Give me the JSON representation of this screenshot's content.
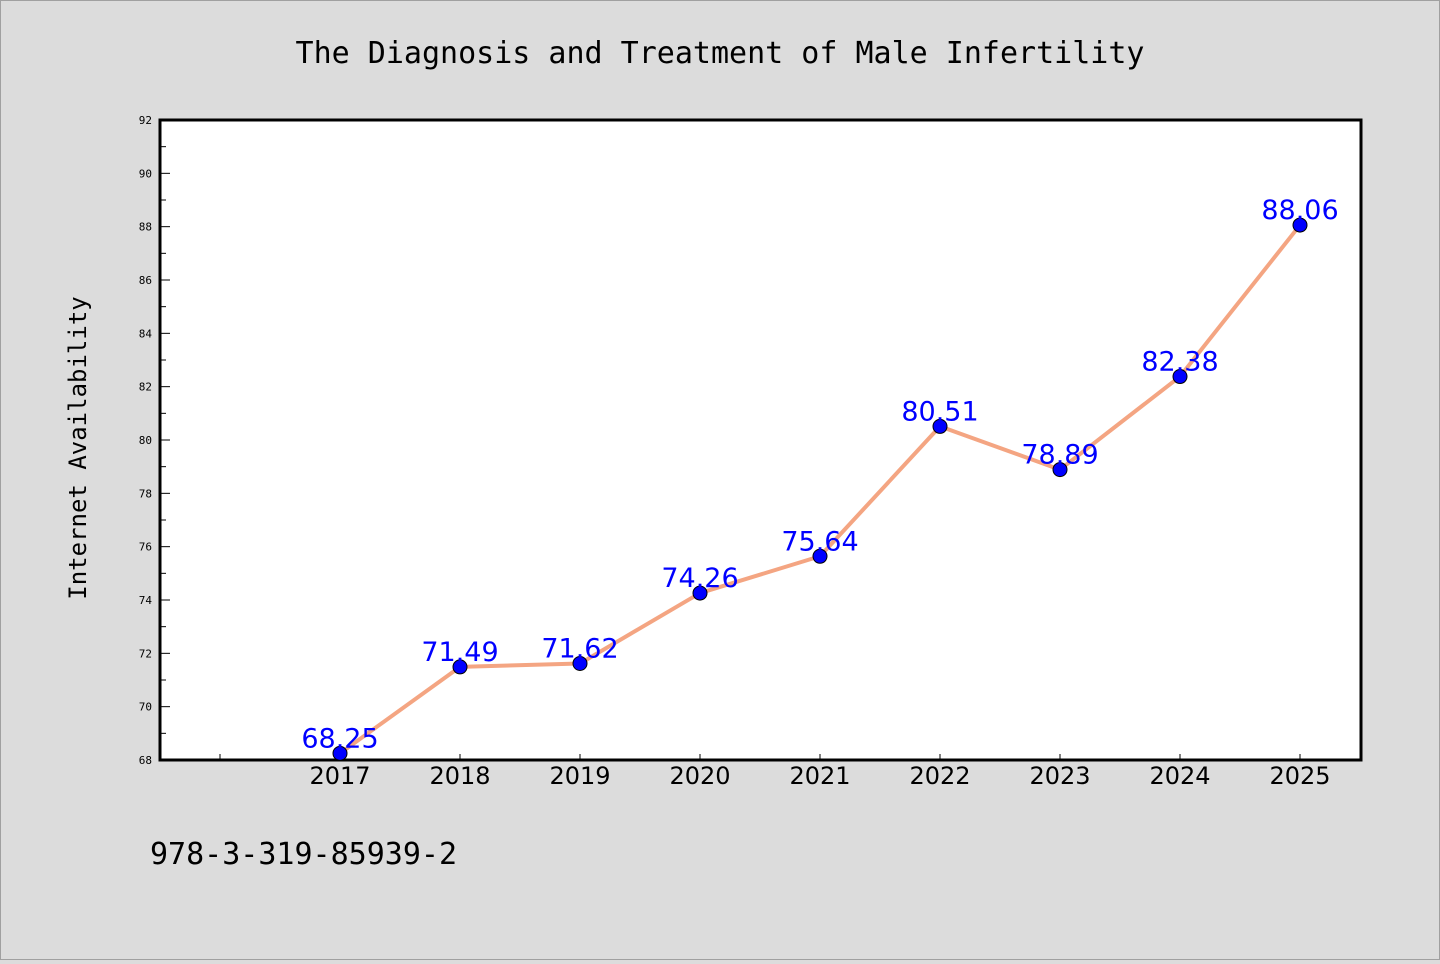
{
  "chart_data": {
    "type": "line",
    "title": "The Diagnosis and Treatment of Male Infertility",
    "xlabel": "",
    "ylabel": "Internet Availability",
    "categories": [
      "2017",
      "2018",
      "2019",
      "2020",
      "2021",
      "2022",
      "2023",
      "2024",
      "2025"
    ],
    "series": [
      {
        "values": [
          68.25,
          71.49,
          71.62,
          74.26,
          75.64,
          80.51,
          78.89,
          82.38,
          88.06
        ],
        "labels": [
          "68.25",
          "71.49",
          "71.62",
          "74.26",
          "75.64",
          "80.51",
          "78.89",
          "82.38",
          "88.06"
        ]
      }
    ],
    "ylim": [
      68,
      92
    ],
    "yticks": [
      "68",
      "70",
      "72",
      "74",
      "76",
      "78",
      "80",
      "82",
      "84",
      "86",
      "88",
      "90",
      "92"
    ],
    "grid": false,
    "legend": "none",
    "colors": {
      "line": "#f4a582",
      "marker": "#0000ff",
      "data_label": "#0000ff",
      "background": "#dcdcdc",
      "plot_background": "#ffffff"
    }
  },
  "footer": {
    "isbn": "978-3-319-85939-2"
  }
}
